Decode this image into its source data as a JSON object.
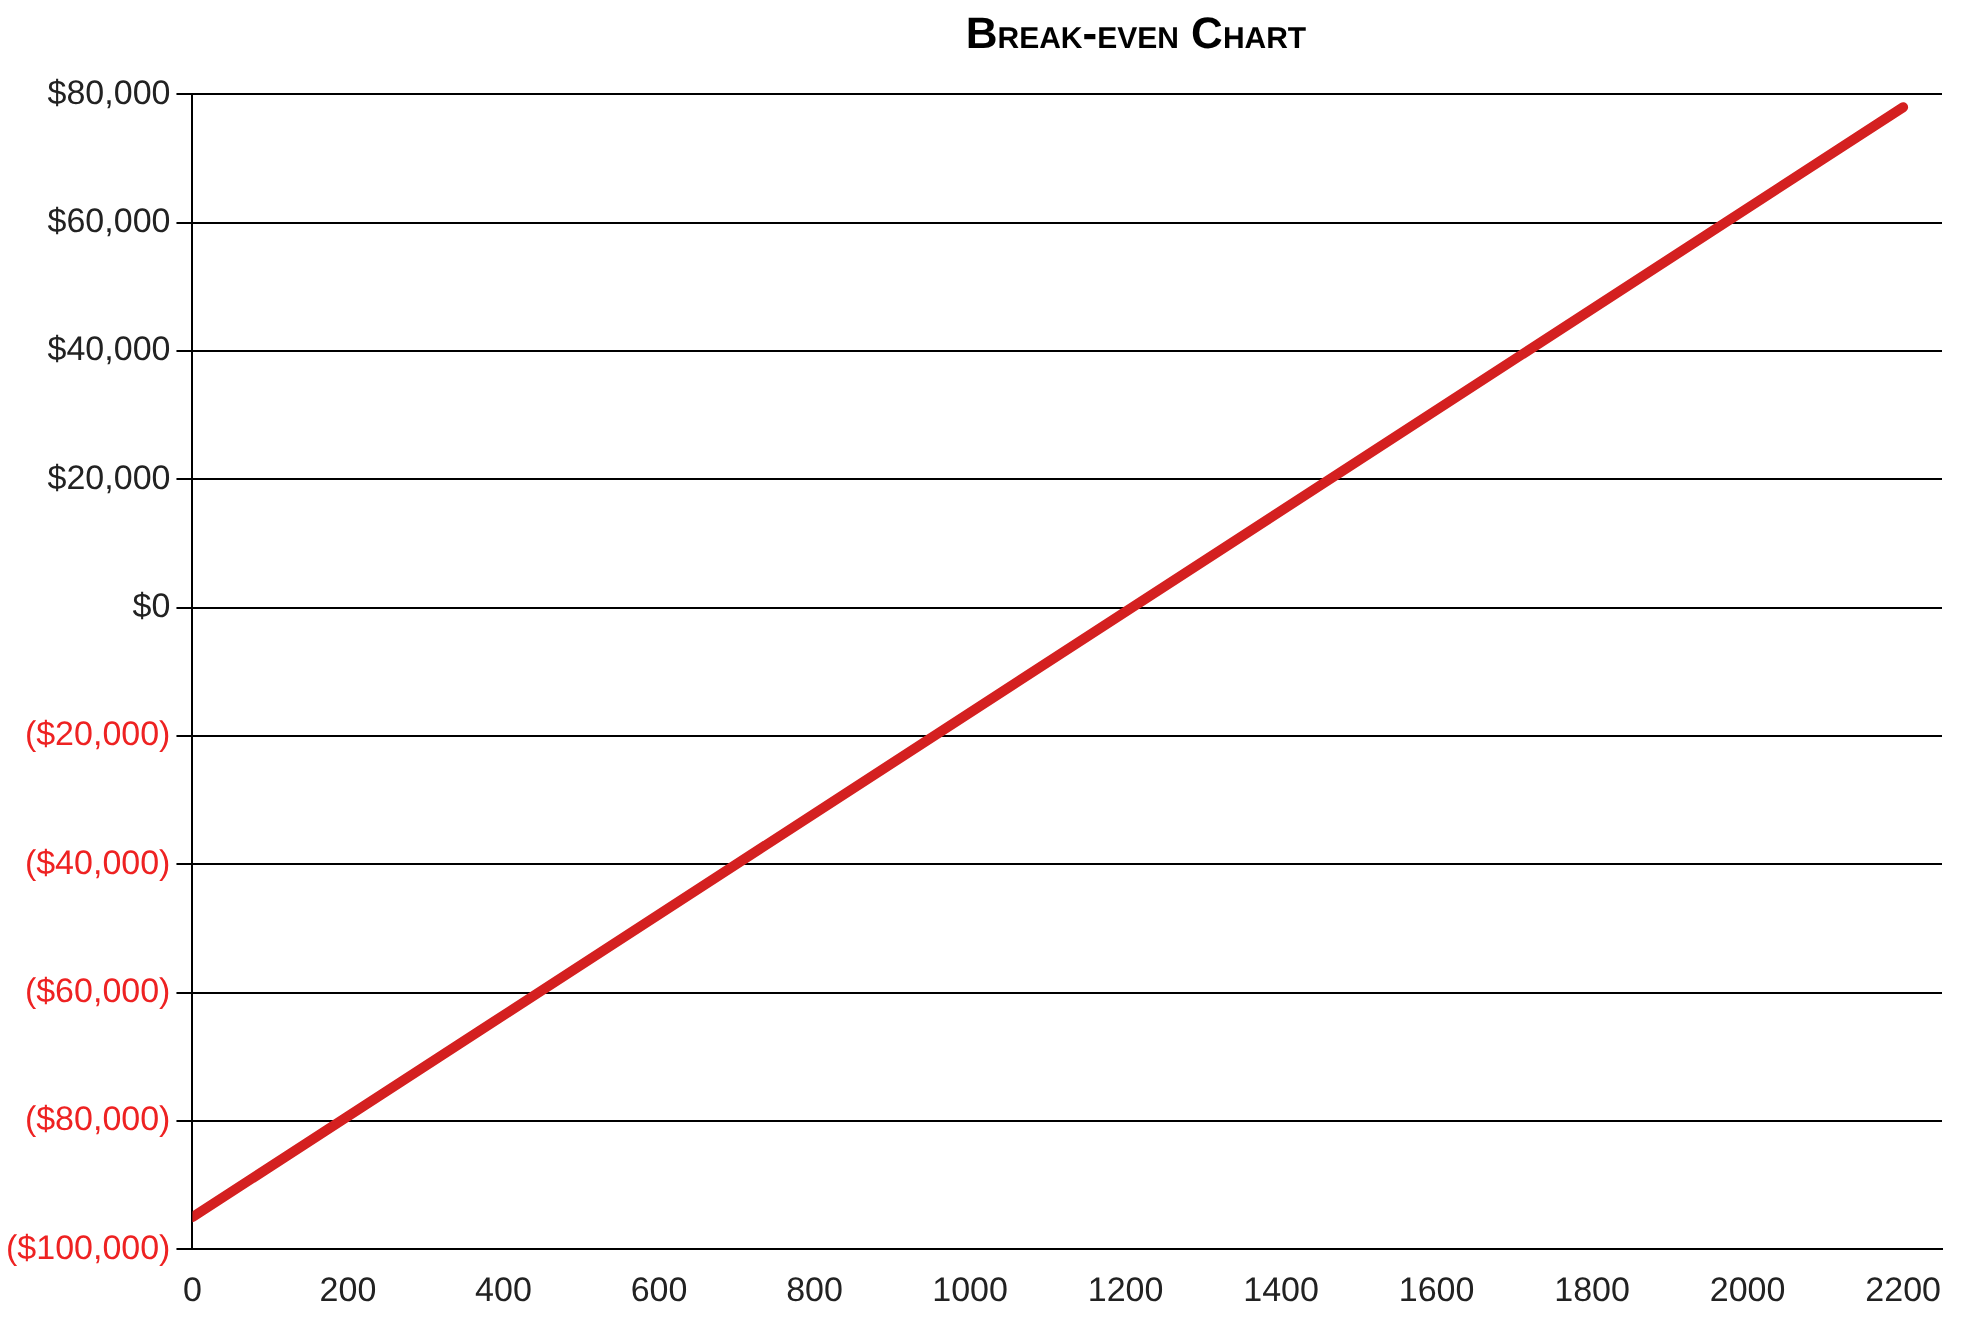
{
  "chart_data": {
    "type": "line",
    "title": "Break-even Chart",
    "x": [
      0,
      2200
    ],
    "series": [
      {
        "color": "#d42020",
        "values": [
          -95000,
          78000
        ]
      }
    ],
    "xlim": [
      0,
      2250
    ],
    "xticks": [
      0,
      200,
      400,
      600,
      800,
      1000,
      1200,
      1400,
      1600,
      1800,
      2000,
      2200
    ],
    "ylim": [
      -100000,
      80000
    ],
    "yticks": [
      {
        "value": -100000,
        "label": "($100,000)"
      },
      {
        "value": -80000,
        "label": "($80,000)"
      },
      {
        "value": -60000,
        "label": "($60,000)"
      },
      {
        "value": -40000,
        "label": "($40,000)"
      },
      {
        "value": -20000,
        "label": "($20,000)"
      },
      {
        "value": 0,
        "label": "$0"
      },
      {
        "value": 20000,
        "label": "$20,000"
      },
      {
        "value": 40000,
        "label": "$40,000"
      },
      {
        "value": 60000,
        "label": "$60,000"
      },
      {
        "value": 80000,
        "label": "$80,000"
      }
    ],
    "grid": "y",
    "legend": false,
    "marker": "none",
    "line_style": "solid"
  }
}
